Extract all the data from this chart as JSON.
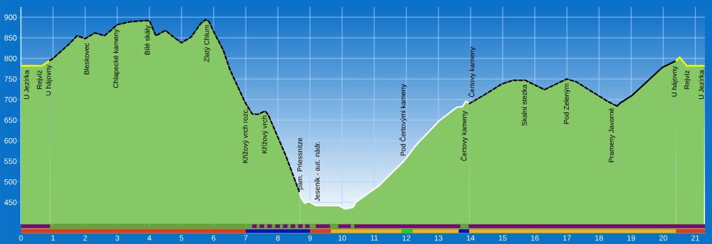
{
  "chart_data": [
    {
      "type": "area",
      "xlim": [
        0,
        21.3
      ],
      "ylim": [
        398,
        925
      ],
      "xticks": [
        0,
        1,
        2,
        3,
        4,
        5,
        6,
        7,
        8,
        9,
        10,
        11,
        12,
        13,
        14,
        15,
        16,
        17,
        18,
        19,
        20,
        21
      ],
      "yticks": [
        450,
        500,
        550,
        600,
        650,
        700,
        750,
        800,
        850,
        900
      ],
      "grid": true,
      "tick_labels": "y",
      "series": [
        {
          "color": "#ffff00",
          "line_style": "solid",
          "x": [
            0,
            0.65,
            0.9
          ],
          "values": [
            782,
            782,
            795
          ]
        },
        {
          "color": "#000000",
          "line_style": "dashed",
          "x": [
            0.9,
            1.0,
            1.5,
            1.75,
            2.0,
            2.3,
            2.6,
            2.8,
            3.0,
            3.4,
            3.7,
            4.0,
            4.2,
            4.5,
            4.7,
            5.0,
            5.3,
            5.6,
            5.75,
            5.85,
            6.0,
            6.3,
            6.51,
            6.98,
            7.2,
            7.38,
            7.6,
            7.7,
            8.03,
            8.25,
            8.68
          ],
          "values": [
            795,
            800,
            835,
            855,
            848,
            862,
            855,
            868,
            882,
            889,
            891,
            892,
            855,
            868,
            855,
            838,
            852,
            885,
            894,
            890,
            865,
            820,
            772,
            693,
            665,
            664,
            672,
            663,
            603,
            563,
            473
          ]
        },
        {
          "color": "#ffffff",
          "line_style": "solid",
          "x": [
            8.68,
            8.72,
            8.83,
            8.97,
            9.19,
            9.91,
            10.09,
            10.34,
            10.42,
            11.14,
            11.94,
            12.3,
            13.02,
            13.57,
            13.75,
            13.86,
            13.96
          ],
          "values": [
            473,
            462,
            448,
            452,
            442,
            442,
            434,
            438,
            450,
            490,
            552,
            589,
            648,
            681,
            683,
            696,
            690
          ]
        },
        {
          "color": "#000000",
          "line_style": "dashed",
          "x": [
            13.96,
            14.4,
            14.98,
            15.34,
            15.7,
            16.3,
            17.0,
            17.29,
            18.3,
            18.56
          ],
          "values": [
            690,
            710,
            738,
            747,
            747,
            724,
            750,
            743,
            694,
            684
          ]
        },
        {
          "color": "#000000",
          "line_style": "solid",
          "x": [
            18.56,
            18.67,
            19.03,
            19.97,
            20.4
          ],
          "values": [
            684,
            692,
            710,
            778,
            794
          ]
        },
        {
          "color": "#ffff00",
          "line_style": "solid",
          "x": [
            20.4,
            20.51,
            20.73,
            21.27
          ],
          "values": [
            794,
            803,
            782,
            782
          ]
        }
      ],
      "annotations": [
        {
          "text": "U Jezírka",
          "x": 0.17,
          "y": 782
        },
        {
          "text": "Rejvíz",
          "x": 0.59,
          "y": 782
        },
        {
          "text": "U hájovny",
          "x": 0.87,
          "y": 795
        },
        {
          "text": "Bleskovec",
          "x": 2.04,
          "y": 848
        },
        {
          "text": "Chlapecké kameny",
          "x": 2.97,
          "y": 882
        },
        {
          "text": "Bílé skály",
          "x": 3.95,
          "y": 891
        },
        {
          "text": "Zlatý Chlum",
          "x": 5.8,
          "y": 892
        },
        {
          "text": "Křížový vrch rozc.",
          "x": 7.0,
          "y": 690
        },
        {
          "text": "Křížový vrch",
          "x": 7.6,
          "y": 672
        },
        {
          "text": "pam. Priessnitze",
          "x": 8.7,
          "y": 470
        },
        {
          "text": "Jeseník - aut. nádr.",
          "x": 9.22,
          "y": 442
        },
        {
          "text": "Pod Čertovými kameny",
          "x": 11.9,
          "y": 552
        },
        {
          "text": "Čertovy kameny",
          "x": 13.8,
          "y": 683
        },
        {
          "text": "Čertovy kameny",
          "x": 14.04,
          "y": 695
        },
        {
          "text": "Skalní stezka",
          "x": 15.67,
          "y": 747
        },
        {
          "text": "Pod Zeleným",
          "x": 17.0,
          "y": 750
        },
        {
          "text": "Prameny Javorné",
          "x": 18.4,
          "y": 690
        },
        {
          "text": "U hájovny",
          "x": 20.36,
          "y": 792
        },
        {
          "text": "Rejvíz",
          "x": 20.75,
          "y": 782
        },
        {
          "text": "U Jezírka",
          "x": 21.18,
          "y": 782
        }
      ]
    },
    {
      "type": "bar",
      "orientation": "horizontal",
      "categories": [
        null
      ],
      "xlim": [
        0,
        21.3
      ],
      "xticks": [
        0,
        1,
        2,
        3,
        4,
        5,
        6,
        7,
        8,
        9,
        10,
        11,
        12,
        13,
        14,
        15,
        16,
        17,
        18,
        19,
        20,
        21
      ],
      "tick_labels": false,
      "series": [
        {
          "color": "#800080",
          "values": [
            0.9
          ],
          "base": [
            0
          ]
        },
        {
          "color": "#800080",
          "values": [
            0.14
          ],
          "base": [
            7.2
          ]
        },
        {
          "color": "#800080",
          "values": [
            0.14
          ],
          "base": [
            7.43
          ]
        },
        {
          "color": "#800080",
          "values": [
            0.14
          ],
          "base": [
            7.67
          ]
        },
        {
          "color": "#800080",
          "values": [
            0.14
          ],
          "base": [
            7.92
          ]
        },
        {
          "color": "#800080",
          "values": [
            0.14
          ],
          "base": [
            8.16
          ]
        },
        {
          "color": "#800080",
          "values": [
            0.14
          ],
          "base": [
            8.4
          ]
        },
        {
          "color": "#800080",
          "values": [
            0.14
          ],
          "base": [
            8.63
          ]
        },
        {
          "color": "#800080",
          "values": [
            0.14
          ],
          "base": [
            8.85
          ]
        },
        {
          "color": "#800080",
          "values": [
            0.44
          ],
          "base": [
            9.18
          ]
        },
        {
          "color": "#800080",
          "values": [
            0.39
          ],
          "base": [
            9.88
          ]
        },
        {
          "color": "#800080",
          "values": [
            3.3
          ],
          "base": [
            10.38
          ]
        },
        {
          "color": "#800080",
          "values": [
            7.36
          ],
          "base": [
            13.94
          ]
        }
      ]
    },
    {
      "type": "bar",
      "orientation": "horizontal",
      "categories": [
        null
      ],
      "xlim": [
        0,
        21.3
      ],
      "xticks": [
        0,
        1,
        2,
        3,
        4,
        5,
        6,
        7,
        8,
        9,
        10,
        11,
        12,
        13,
        14,
        15,
        16,
        17,
        18,
        19,
        20,
        21
      ],
      "tick_labels": "x",
      "series": [
        {
          "color": "#ee3322",
          "values": [
            7.0
          ],
          "base": [
            0
          ]
        },
        {
          "color": "#0011cc",
          "values": [
            2.0
          ],
          "base": [
            7.0
          ]
        },
        {
          "color": "#ee3322",
          "values": [
            0.65
          ],
          "base": [
            9.0
          ]
        },
        {
          "color": "#f0b020",
          "values": [
            2.2
          ],
          "base": [
            9.65
          ]
        },
        {
          "color": "#22cc22",
          "values": [
            0.35
          ],
          "base": [
            11.85
          ]
        },
        {
          "color": "#f0b020",
          "values": [
            1.43
          ],
          "base": [
            12.2
          ]
        },
        {
          "color": "#0011cc",
          "values": [
            0.33
          ],
          "base": [
            13.63
          ]
        },
        {
          "color": "#f0b020",
          "values": [
            6.44
          ],
          "base": [
            13.96
          ]
        },
        {
          "color": "#ee3322",
          "values": [
            0.9
          ],
          "base": [
            20.4
          ]
        }
      ]
    }
  ]
}
